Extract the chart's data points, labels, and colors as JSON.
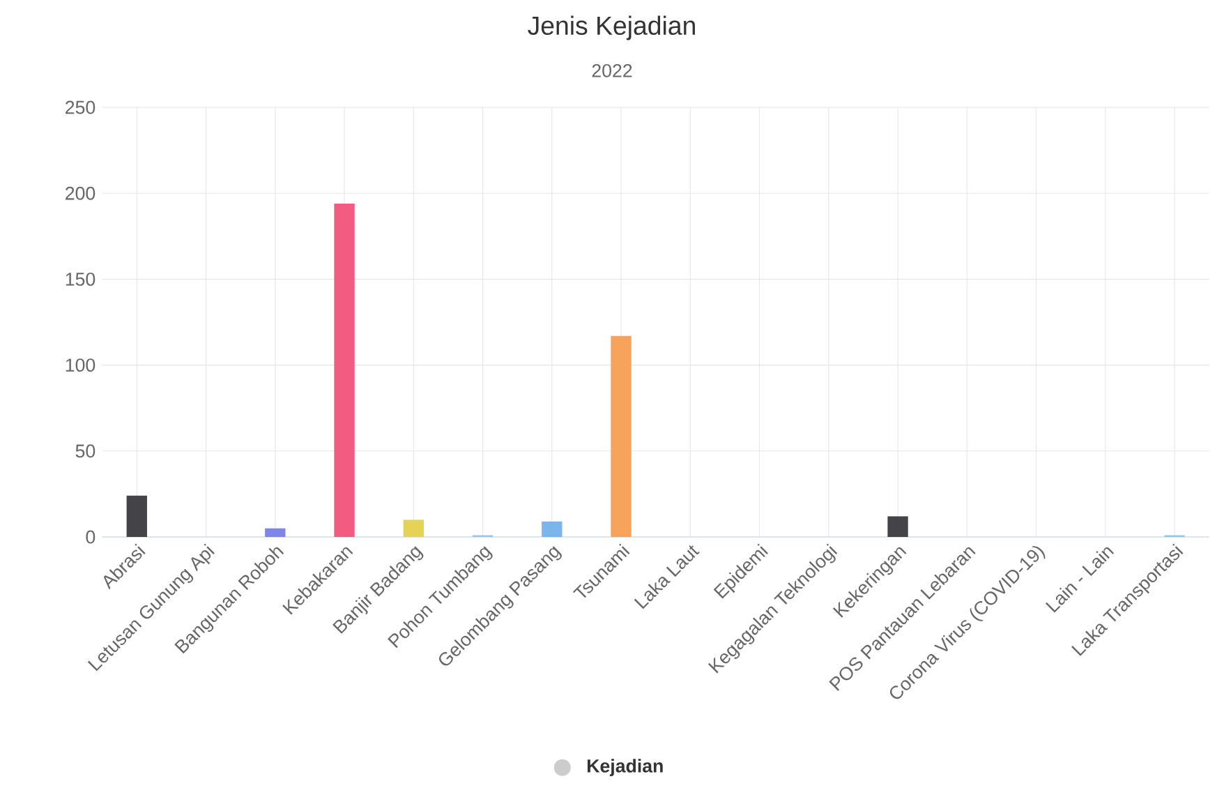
{
  "chart_data": {
    "type": "bar",
    "title": "Jenis Kejadian",
    "subtitle": "2022",
    "categories": [
      "Abrasi",
      "Letusan Gunung Api",
      "Bangunan Roboh",
      "Kebakaran",
      "Banjir Badang",
      "Pohon Tumbang",
      "Gelombang Pasang",
      "Tsunami",
      "Laka Laut",
      "Epidemi",
      "Kegagalan Teknologi",
      "Kekeringan",
      "POS Pantauan Lebaran",
      "Corona Virus (COVID-19)",
      "Lain - Lain",
      "Laka Transportasi"
    ],
    "series": [
      {
        "name": "Kejadian",
        "color": "#cccccc",
        "values": [
          24,
          0,
          5,
          194,
          10,
          1,
          9,
          117,
          0,
          0,
          0,
          12,
          0,
          0,
          0,
          1
        ],
        "colors": [
          "#434348",
          "#90ed7d",
          "#8085e9",
          "#f15c80",
          "#e4d354",
          "#9cc4e6",
          "#7cb5ec",
          "#f7a35c",
          "#90ed7d",
          "#f7a35c",
          "#8085e9",
          "#434348",
          "#e4d354",
          "#2b908f",
          "#f45b5b",
          "#91c8e8"
        ]
      }
    ],
    "ylim": [
      0,
      250
    ],
    "yticks": [
      0,
      50,
      100,
      150,
      200,
      250
    ],
    "grid": true,
    "legend": "bottom"
  }
}
